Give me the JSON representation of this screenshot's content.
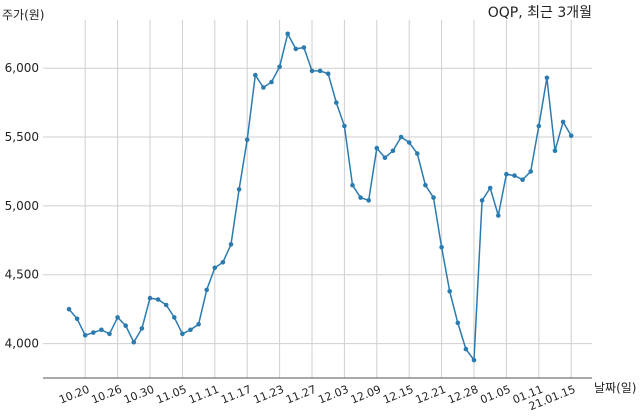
{
  "chart_data": {
    "type": "line",
    "title": "OQP, 최근 3개월",
    "ylabel": "주가(원)",
    "xlabel": "날짜(일)",
    "ylim": [
      3750,
      6350
    ],
    "yticks": [
      4000,
      4500,
      5000,
      5500,
      6000
    ],
    "ytick_labels": [
      "4,000",
      "4,500",
      "5,000",
      "5,500",
      "6,000"
    ],
    "grid": true,
    "x_tick_labels": [
      "10.20",
      "10.26",
      "10.30",
      "11.05",
      "11.11",
      "11.17",
      "11.23",
      "11.27",
      "12.03",
      "12.09",
      "12.15",
      "12.21",
      "12.28",
      "01.05",
      "01.11",
      "21.01.15"
    ],
    "x_tick_index": [
      2,
      6,
      10,
      14,
      18,
      22,
      26,
      30,
      34,
      38,
      42,
      46,
      50,
      54,
      58,
      62
    ],
    "series": [
      {
        "color": "#2b7bb0",
        "values": [
          4250,
          4180,
          4060,
          4080,
          4100,
          4070,
          4190,
          4130,
          4010,
          4110,
          4330,
          4320,
          4280,
          4190,
          4070,
          4100,
          4140,
          4390,
          4550,
          4590,
          4720,
          5120,
          5480,
          5950,
          5860,
          5900,
          6010,
          6250,
          6140,
          6150,
          5980,
          5980,
          5960,
          5750,
          5580,
          5150,
          5060,
          5040,
          5420,
          5350,
          5400,
          5500,
          5460,
          5380,
          5150,
          5060,
          4700,
          4380,
          4150,
          3960,
          3880,
          5040,
          5130,
          4930,
          5230,
          5220,
          5190,
          5250,
          5580,
          5930,
          5400,
          5610,
          5510
        ]
      }
    ]
  }
}
